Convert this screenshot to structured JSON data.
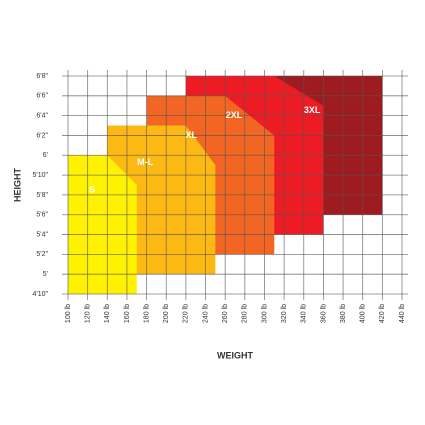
{
  "chart_data": {
    "type": "size-regions",
    "xlabel": "WEIGHT",
    "ylabel": "HEIGHT",
    "xlim": [
      100,
      440
    ],
    "ylim": [
      58,
      80
    ],
    "grid": true,
    "xticks": [
      {
        "value": 100,
        "label": "100 lb"
      },
      {
        "value": 120,
        "label": "120 lb"
      },
      {
        "value": 140,
        "label": "140 lb"
      },
      {
        "value": 160,
        "label": "160 lb"
      },
      {
        "value": 180,
        "label": "180 lb"
      },
      {
        "value": 200,
        "label": "200 lb"
      },
      {
        "value": 220,
        "label": "220 lb"
      },
      {
        "value": 240,
        "label": "240 lb"
      },
      {
        "value": 260,
        "label": "260 lb"
      },
      {
        "value": 280,
        "label": "280 lb"
      },
      {
        "value": 300,
        "label": "300 lb"
      },
      {
        "value": 320,
        "label": "320 lb"
      },
      {
        "value": 340,
        "label": "340 lb"
      },
      {
        "value": 360,
        "label": "360 lb"
      },
      {
        "value": 380,
        "label": "380 lb"
      },
      {
        "value": 400,
        "label": "400 lb"
      },
      {
        "value": 420,
        "label": "420 lb"
      },
      {
        "value": 440,
        "label": "440 lb"
      }
    ],
    "yticks": [
      {
        "value": 58,
        "label": "4'10\""
      },
      {
        "value": 60,
        "label": "5'"
      },
      {
        "value": 62,
        "label": "5'2\""
      },
      {
        "value": 64,
        "label": "5'4\""
      },
      {
        "value": 66,
        "label": "5'6\""
      },
      {
        "value": 68,
        "label": "5'8\""
      },
      {
        "value": 70,
        "label": "5'10\""
      },
      {
        "value": 72,
        "label": "6'"
      },
      {
        "value": 74,
        "label": "6'2\""
      },
      {
        "value": 76,
        "label": "6'4\""
      },
      {
        "value": 78,
        "label": "6'6\""
      },
      {
        "value": 80,
        "label": "6'8\""
      }
    ],
    "series": [
      {
        "name": "3XL",
        "color": "#9e1b20",
        "x": [
          310,
          310,
          420,
          420
        ],
        "y": [
          66,
          80,
          80,
          66
        ]
      },
      {
        "name": "2XL",
        "color": "#ed1c24",
        "x": [
          220,
          220,
          310,
          360,
          360
        ],
        "y": [
          64,
          80,
          80,
          77,
          64
        ]
      },
      {
        "name": "XL",
        "color": "#f26522",
        "x": [
          180,
          180,
          260,
          310,
          310
        ],
        "y": [
          62,
          78,
          78,
          74,
          62
        ]
      },
      {
        "name": "M-L",
        "color": "#fdb913",
        "x": [
          140,
          140,
          220,
          250,
          250
        ],
        "y": [
          60,
          75,
          75,
          71,
          60
        ]
      },
      {
        "name": "S",
        "color": "#fff200",
        "x": [
          100,
          100,
          140,
          170,
          170
        ],
        "y": [
          58,
          72,
          72,
          69,
          58
        ]
      }
    ]
  }
}
